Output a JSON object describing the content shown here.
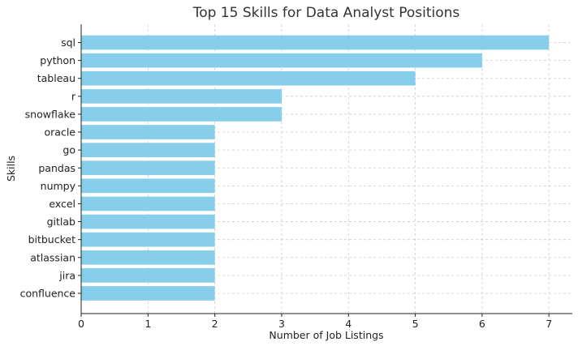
{
  "chart_data": {
    "type": "bar",
    "orientation": "horizontal",
    "title": "Top 15 Skills for Data Analyst Positions",
    "xlabel": "Number of Job Listings",
    "ylabel": "Skills",
    "categories": [
      "sql",
      "python",
      "tableau",
      "r",
      "snowflake",
      "oracle",
      "go",
      "pandas",
      "numpy",
      "excel",
      "gitlab",
      "bitbucket",
      "atlassian",
      "jira",
      "confluence"
    ],
    "values": [
      7,
      6,
      5,
      3,
      3,
      2,
      2,
      2,
      2,
      2,
      2,
      2,
      2,
      2,
      2
    ],
    "xlim": [
      0,
      7.35
    ],
    "xticks": [
      0,
      1,
      2,
      3,
      4,
      5,
      6,
      7
    ],
    "grid": true,
    "bar_color": "#87CEEB"
  }
}
